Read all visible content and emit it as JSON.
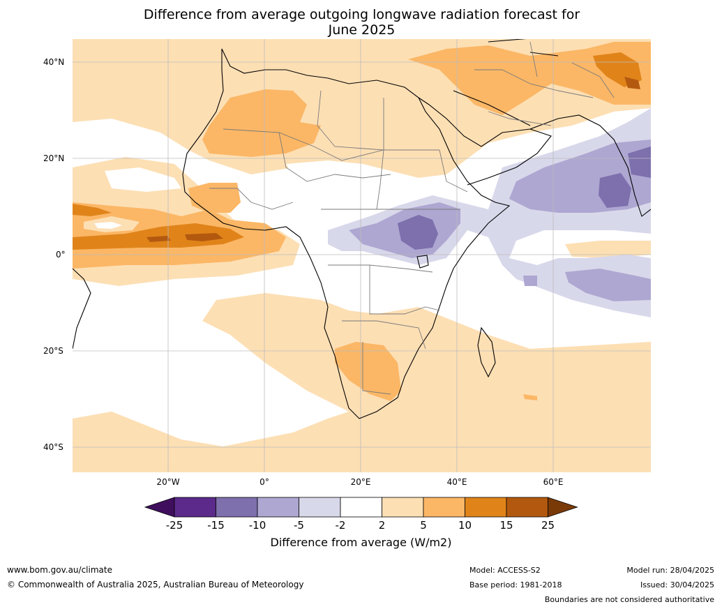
{
  "title_lines": [
    "Difference from average outgoing longwave radiation forecast for",
    "June 2025"
  ],
  "lat_labels": [
    "40°N",
    "20°N",
    "0°",
    "20°S",
    "40°S"
  ],
  "lon_labels": [
    "20°W",
    "0°",
    "20°E",
    "40°E",
    "60°E"
  ],
  "colorbar": {
    "ticks": [
      "-25",
      "-15",
      "-10",
      "-5",
      "-2",
      "2",
      "5",
      "10",
      "15",
      "25"
    ],
    "colors": [
      "#3f0f5e",
      "#5b2a8a",
      "#7e6fad",
      "#aea7d1",
      "#d8d8eb",
      "#ffffff",
      "#fddfb4",
      "#fbb766",
      "#e0841a",
      "#b3590f",
      "#7a3a08"
    ],
    "title": "Difference from average (W/m2)"
  },
  "footer": {
    "url": "www.bom.gov.au/climate",
    "copyright": "© Commonwealth of Australia 2025, Australian Bureau of Meteorology",
    "model": "Model: ACCESS-S2",
    "base_period": "Base period: 1981-2018",
    "model_run": "Model run: 28/04/2025",
    "issued": "Issued: 30/04/2025",
    "disclaimer": "Boundaries are not considered authoritative"
  }
}
